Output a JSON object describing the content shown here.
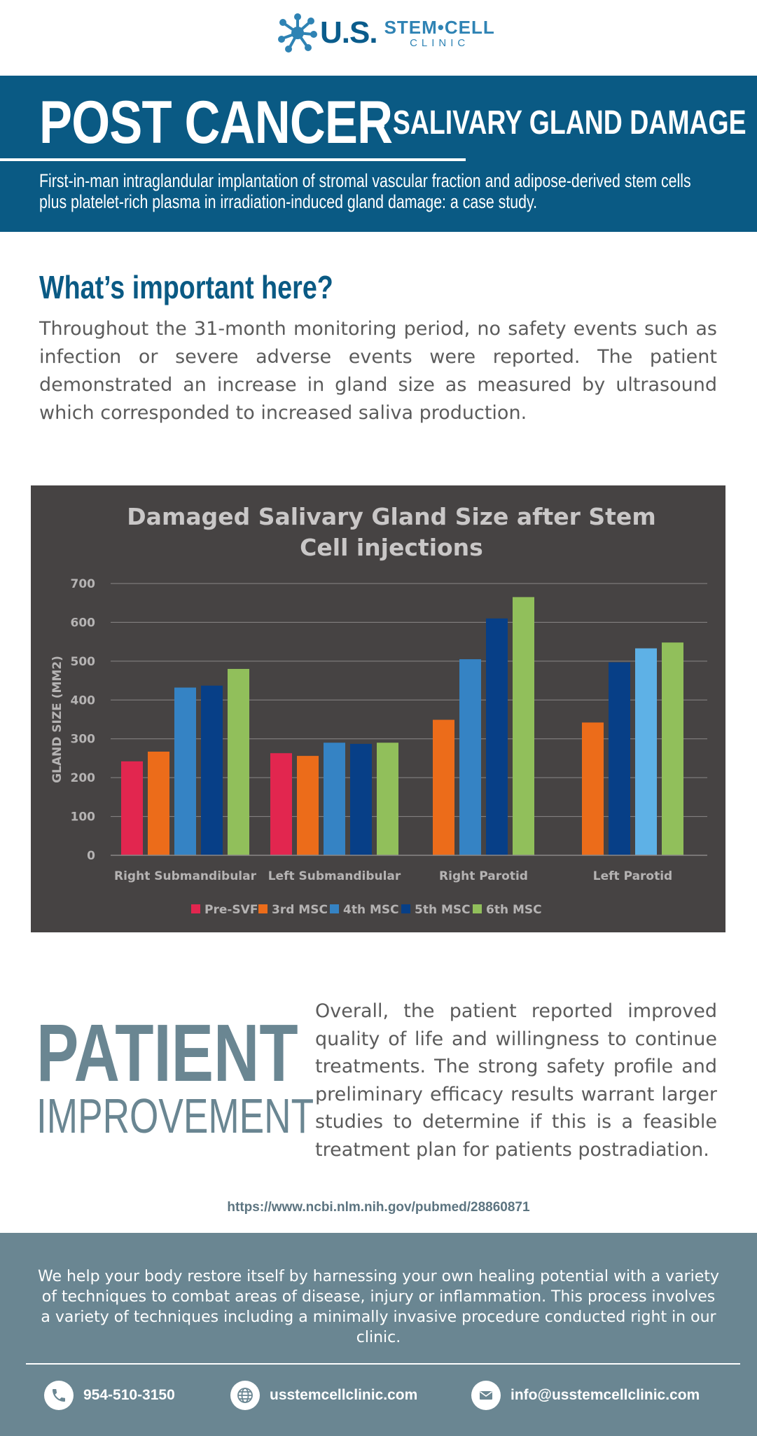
{
  "logo": {
    "us": "U.S.",
    "stem_cell": "STEM•CELL",
    "clinic": "CLINIC"
  },
  "banner": {
    "title": "POST CANCER",
    "subtitle": "- SALIVARY GLAND DAMAGE",
    "description": "First-in-man intraglandular implantation of stromal vascular fraction and adipose-derived stem cells plus platelet-rich plasma in irradiation-induced gland damage: a case study."
  },
  "important": {
    "heading": "What’s important here?",
    "body": "Throughout the 31-month monitoring period, no safety events such as infection or severe adverse events were reported. The patient demonstrated an increase in gland size as measured by ultrasound which corresponded to increased saliva production."
  },
  "chart_data": {
    "type": "bar",
    "title_lines": [
      "Damaged Salivary Gland Size after Stem",
      "Cell injections"
    ],
    "ylabel": "GLAND SIZE (MM2)",
    "xlabel": "",
    "ylim": [
      0,
      700
    ],
    "yticks": [
      0,
      100,
      200,
      300,
      400,
      500,
      600,
      700
    ],
    "grid": true,
    "legend_position": "bottom",
    "categories": [
      "Right Submandibular",
      "Left Submandibular",
      "Right Parotid",
      "Left Parotid"
    ],
    "series": [
      {
        "name": "Pre-SVF",
        "color": "#e2264f",
        "values": [
          242,
          263,
          null,
          null
        ]
      },
      {
        "name": "3rd MSC",
        "color": "#ec6c1a",
        "values": [
          267,
          256,
          349,
          342
        ]
      },
      {
        "name": "4th MSC",
        "color": "#3583c4",
        "values": [
          432,
          290,
          505,
          null
        ]
      },
      {
        "name": "5th MSC",
        "color": "#073f87",
        "values": [
          437,
          287,
          610,
          497
        ]
      },
      {
        "name": "6th MSC",
        "color": "#91bf5b",
        "values": [
          480,
          290,
          665,
          548
        ]
      },
      {
        "name": "",
        "color": "#5eb1e6",
        "values": [
          null,
          null,
          null,
          533
        ]
      }
    ],
    "colors": {
      "background": "#464343",
      "grid": "#8a8787",
      "text": "#b5b3b3",
      "title": "#c9c7c7"
    }
  },
  "patient": {
    "heading_big": "PATIENT",
    "heading_small": "IMPROVEMENT",
    "body": "Overall, the patient reported improved quality of life and willingness to continue treatments. The strong safety profile and preliminary efficacy results warrant larger studies to determine if this is a feasible treatment plan for patients postradiation."
  },
  "source_link": "https://www.ncbi.nlm.nih.gov/pubmed/28860871",
  "footer": {
    "text": "We help your body restore itself by harnessing your own healing potential with a variety of techniques to combat areas of disease, injury or inflammation. This process involves a variety of techniques including a minimally invasive procedure conducted right in our clinic.",
    "phone": "954-510-3150",
    "website": "usstemcellclinic.com",
    "email": "info@usstemcellclinic.com",
    "icons": [
      "phone-icon",
      "globe-icon",
      "mail-icon"
    ]
  },
  "colors": {
    "primary": "#0a5a84",
    "slate": "#6a8692",
    "body_text": "#5b5b5b"
  }
}
